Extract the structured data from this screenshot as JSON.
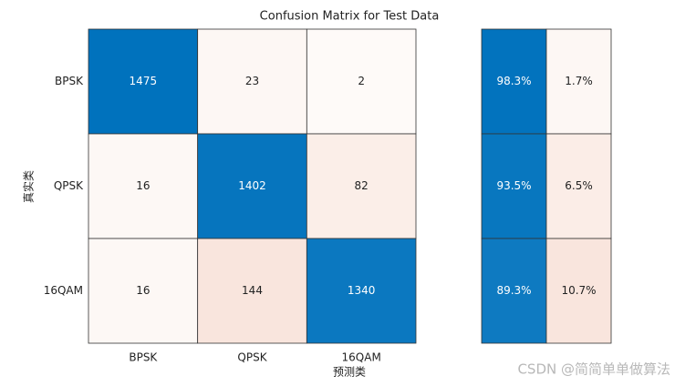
{
  "chart_data": {
    "type": "confusion",
    "title": "Confusion Matrix for Test Data",
    "xlabel": "预测类",
    "ylabel": "真实类",
    "categories": [
      "BPSK",
      "QPSK",
      "16QAM"
    ],
    "matrix": [
      [
        1475,
        23,
        2
      ],
      [
        16,
        1402,
        82
      ],
      [
        16,
        144,
        1340
      ]
    ],
    "row_summary": {
      "values": [
        [
          98.3,
          1.7
        ],
        [
          93.5,
          6.5
        ],
        [
          89.3,
          10.7
        ]
      ],
      "value_labels": [
        [
          "98.3%",
          "1.7%"
        ],
        [
          "93.5%",
          "6.5%"
        ],
        [
          "89.3%",
          "10.7%"
        ]
      ]
    },
    "diagonal_color": "#0072bd",
    "off_diagonal_color": "#d95319"
  },
  "watermark": "CSDN @简简单单做算法"
}
